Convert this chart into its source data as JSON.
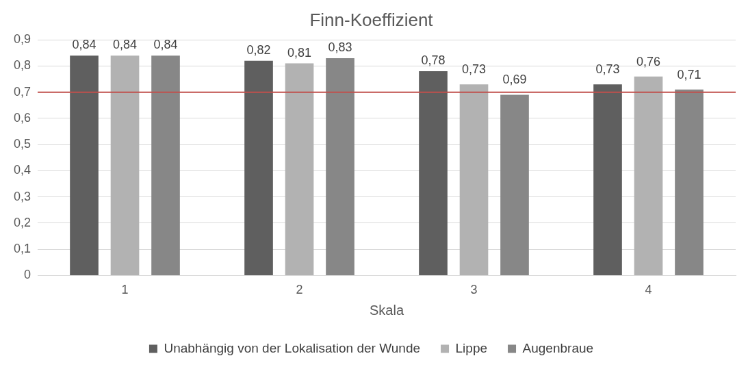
{
  "chart_data": {
    "type": "bar",
    "title": "Finn-Koeffizient",
    "xlabel": "Skala",
    "categories": [
      "1",
      "2",
      "3",
      "4"
    ],
    "series": [
      {
        "name": "Unabhängig von der Lokalisation der Wunde",
        "color": "#5f5f5f",
        "values": [
          0.84,
          0.82,
          0.78,
          0.73
        ],
        "value_labels": [
          "0,84",
          "0,82",
          "0,78",
          "0,73"
        ]
      },
      {
        "name": "Lippe",
        "color": "#b2b2b2",
        "values": [
          0.84,
          0.81,
          0.73,
          0.76
        ],
        "value_labels": [
          "0,84",
          "0,81",
          "0,73",
          "0,76"
        ]
      },
      {
        "name": "Augenbraue",
        "color": "#878787",
        "values": [
          0.84,
          0.83,
          0.69,
          0.71
        ],
        "value_labels": [
          "0,84",
          "0,83",
          "0,69",
          "0,71"
        ]
      }
    ],
    "ylim": [
      0,
      0.9
    ],
    "yticks": [
      0,
      {
        "value": 0.1,
        "label": "0,1"
      },
      {
        "value": 0.2,
        "label": "0,2"
      },
      {
        "value": 0.3,
        "label": "0,3"
      },
      {
        "value": 0.4,
        "label": "0,4"
      },
      {
        "value": 0.5,
        "label": "0,5"
      },
      {
        "value": 0.6,
        "label": "0,6"
      },
      {
        "value": 0.7,
        "label": "0,7"
      },
      {
        "value": 0.8,
        "label": "0,8"
      },
      {
        "value": 0.9,
        "label": "0,9"
      }
    ],
    "ref_lines": [
      {
        "axis": "y",
        "value": 0.7,
        "color": "#c0504d"
      }
    ],
    "grid": "y",
    "legend": "bottom"
  }
}
